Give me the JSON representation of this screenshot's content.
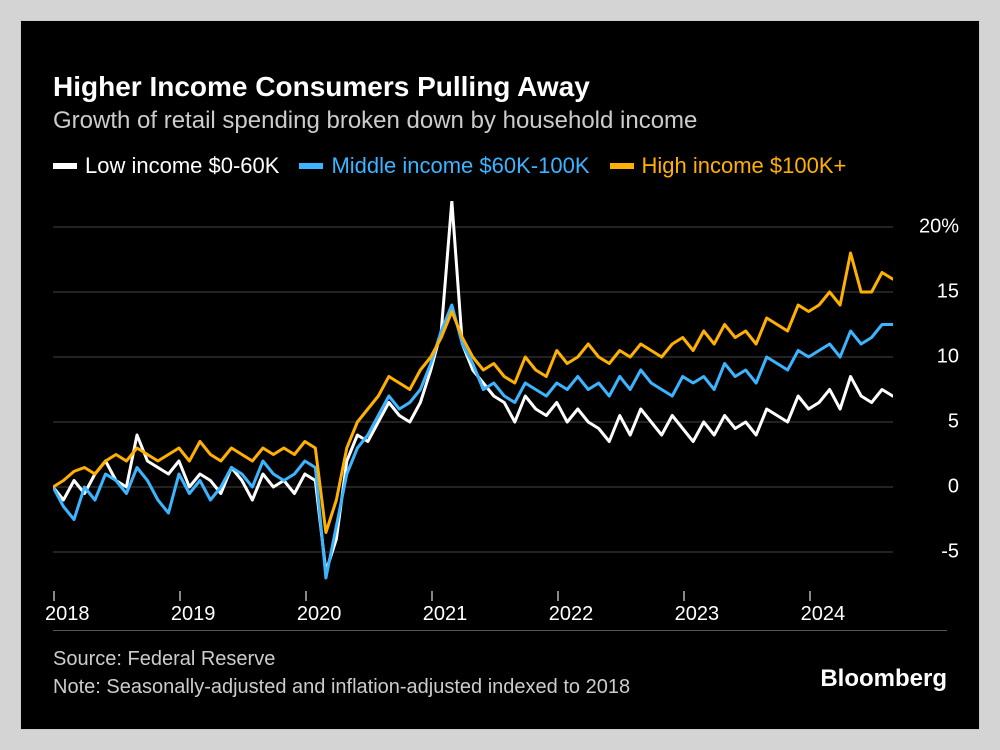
{
  "title": "Higher Income Consumers Pulling Away",
  "subtitle": "Growth of retail spending broken down by household income",
  "source": "Source: Federal Reserve",
  "note": "Note: Seasonally-adjusted and inflation-adjusted indexed to 2018",
  "brand": "Bloomberg",
  "chart": {
    "type": "line",
    "background_color": "#000000",
    "grid_color": "#444444",
    "text_color": "#ffffff",
    "subtitle_color": "#cccccc",
    "title_fontsize": 28,
    "subtitle_fontsize": 24,
    "legend_fontsize": 22,
    "axis_fontsize": 20,
    "line_width": 3,
    "ylim": [
      -8,
      22
    ],
    "yticks": [
      -5,
      0,
      5,
      10,
      15,
      20
    ],
    "ytick_labels": [
      "-5",
      "0",
      "5",
      "10",
      "15",
      "20%"
    ],
    "xlim": [
      2018,
      2024.67
    ],
    "xticks": [
      2018,
      2019,
      2020,
      2021,
      2022,
      2023,
      2024
    ],
    "xtick_labels": [
      "2018",
      "2019",
      "2020",
      "2021",
      "2022",
      "2023",
      "2024"
    ],
    "series": [
      {
        "name": "Low income $0-60K",
        "color": "#ffffff",
        "x": [
          2018.0,
          2018.083,
          2018.167,
          2018.25,
          2018.333,
          2018.417,
          2018.5,
          2018.583,
          2018.667,
          2018.75,
          2018.833,
          2018.917,
          2019.0,
          2019.083,
          2019.167,
          2019.25,
          2019.333,
          2019.417,
          2019.5,
          2019.583,
          2019.667,
          2019.75,
          2019.833,
          2019.917,
          2020.0,
          2020.083,
          2020.167,
          2020.25,
          2020.333,
          2020.417,
          2020.5,
          2020.583,
          2020.667,
          2020.75,
          2020.833,
          2020.917,
          2021.0,
          2021.083,
          2021.167,
          2021.25,
          2021.333,
          2021.417,
          2021.5,
          2021.583,
          2021.667,
          2021.75,
          2021.833,
          2021.917,
          2022.0,
          2022.083,
          2022.167,
          2022.25,
          2022.333,
          2022.417,
          2022.5,
          2022.583,
          2022.667,
          2022.75,
          2022.833,
          2022.917,
          2023.0,
          2023.083,
          2023.167,
          2023.25,
          2023.333,
          2023.417,
          2023.5,
          2023.583,
          2023.667,
          2023.75,
          2023.833,
          2023.917,
          2024.0,
          2024.083,
          2024.167,
          2024.25,
          2024.333,
          2024.417,
          2024.5,
          2024.583,
          2024.667
        ],
        "y": [
          0,
          -1,
          0.5,
          -0.5,
          1,
          2,
          0.5,
          0,
          4,
          2,
          1.5,
          1,
          2,
          0,
          1,
          0.5,
          -0.5,
          1.5,
          0.5,
          -1,
          1,
          0,
          0.5,
          -0.5,
          1,
          0.5,
          -6.5,
          -4,
          2,
          4,
          3.5,
          5,
          6.5,
          5.5,
          5,
          6.5,
          9,
          12,
          22,
          11,
          9,
          8,
          7,
          6.5,
          5,
          7,
          6,
          5.5,
          6.5,
          5,
          6,
          5,
          4.5,
          3.5,
          5.5,
          4,
          6,
          5,
          4,
          5.5,
          4.5,
          3.5,
          5,
          4,
          5.5,
          4.5,
          5,
          4,
          6,
          5.5,
          5,
          7,
          6,
          6.5,
          7.5,
          6,
          8.5,
          7,
          6.5,
          7.5,
          7
        ]
      },
      {
        "name": "Middle income $60K-100K",
        "color": "#3cb4ff",
        "x": [
          2018.0,
          2018.083,
          2018.167,
          2018.25,
          2018.333,
          2018.417,
          2018.5,
          2018.583,
          2018.667,
          2018.75,
          2018.833,
          2018.917,
          2019.0,
          2019.083,
          2019.167,
          2019.25,
          2019.333,
          2019.417,
          2019.5,
          2019.583,
          2019.667,
          2019.75,
          2019.833,
          2019.917,
          2020.0,
          2020.083,
          2020.167,
          2020.25,
          2020.333,
          2020.417,
          2020.5,
          2020.583,
          2020.667,
          2020.75,
          2020.833,
          2020.917,
          2021.0,
          2021.083,
          2021.167,
          2021.25,
          2021.333,
          2021.417,
          2021.5,
          2021.583,
          2021.667,
          2021.75,
          2021.833,
          2021.917,
          2022.0,
          2022.083,
          2022.167,
          2022.25,
          2022.333,
          2022.417,
          2022.5,
          2022.583,
          2022.667,
          2022.75,
          2022.833,
          2022.917,
          2023.0,
          2023.083,
          2023.167,
          2023.25,
          2023.333,
          2023.417,
          2023.5,
          2023.583,
          2023.667,
          2023.75,
          2023.833,
          2023.917,
          2024.0,
          2024.083,
          2024.167,
          2024.25,
          2024.333,
          2024.417,
          2024.5,
          2024.583,
          2024.667
        ],
        "y": [
          0,
          -1.5,
          -2.5,
          0,
          -1,
          1,
          0.5,
          -0.5,
          1.5,
          0.5,
          -1,
          -2,
          1,
          -0.5,
          0.5,
          -1,
          0,
          1.5,
          1,
          0,
          2,
          1,
          0.5,
          1,
          2,
          1.5,
          -7,
          -3,
          1,
          3,
          4,
          5.5,
          7,
          6,
          6.5,
          7.5,
          9.5,
          12,
          14,
          11,
          9.5,
          7.5,
          8,
          7,
          6.5,
          8,
          7.5,
          7,
          8,
          7.5,
          8.5,
          7.5,
          8,
          7,
          8.5,
          7.5,
          9,
          8,
          7.5,
          7,
          8.5,
          8,
          8.5,
          7.5,
          9.5,
          8.5,
          9,
          8,
          10,
          9.5,
          9,
          10.5,
          10,
          10.5,
          11,
          10,
          12,
          11,
          11.5,
          12.5,
          12.5
        ]
      },
      {
        "name": "High income $100K+",
        "color": "#ffb000",
        "x": [
          2018.0,
          2018.083,
          2018.167,
          2018.25,
          2018.333,
          2018.417,
          2018.5,
          2018.583,
          2018.667,
          2018.75,
          2018.833,
          2018.917,
          2019.0,
          2019.083,
          2019.167,
          2019.25,
          2019.333,
          2019.417,
          2019.5,
          2019.583,
          2019.667,
          2019.75,
          2019.833,
          2019.917,
          2020.0,
          2020.083,
          2020.167,
          2020.25,
          2020.333,
          2020.417,
          2020.5,
          2020.583,
          2020.667,
          2020.75,
          2020.833,
          2020.917,
          2021.0,
          2021.083,
          2021.167,
          2021.25,
          2021.333,
          2021.417,
          2021.5,
          2021.583,
          2021.667,
          2021.75,
          2021.833,
          2021.917,
          2022.0,
          2022.083,
          2022.167,
          2022.25,
          2022.333,
          2022.417,
          2022.5,
          2022.583,
          2022.667,
          2022.75,
          2022.833,
          2022.917,
          2023.0,
          2023.083,
          2023.167,
          2023.25,
          2023.333,
          2023.417,
          2023.5,
          2023.583,
          2023.667,
          2023.75,
          2023.833,
          2023.917,
          2024.0,
          2024.083,
          2024.167,
          2024.25,
          2024.333,
          2024.417,
          2024.5,
          2024.583,
          2024.667
        ],
        "y": [
          0,
          0.5,
          1.2,
          1.5,
          1,
          2,
          2.5,
          2,
          3,
          2.5,
          2,
          2.5,
          3,
          2,
          3.5,
          2.5,
          2,
          3,
          2.5,
          2,
          3,
          2.5,
          3,
          2.5,
          3.5,
          3,
          -3.5,
          -1,
          3,
          5,
          6,
          7,
          8.5,
          8,
          7.5,
          9,
          10,
          11.5,
          13.5,
          11.5,
          10,
          9,
          9.5,
          8.5,
          8,
          10,
          9,
          8.5,
          10.5,
          9.5,
          10,
          11,
          10,
          9.5,
          10.5,
          10,
          11,
          10.5,
          10,
          11,
          11.5,
          10.5,
          12,
          11,
          12.5,
          11.5,
          12,
          11,
          13,
          12.5,
          12,
          14,
          13.5,
          14,
          15,
          14,
          18,
          15,
          15,
          16.5,
          16
        ]
      }
    ]
  }
}
